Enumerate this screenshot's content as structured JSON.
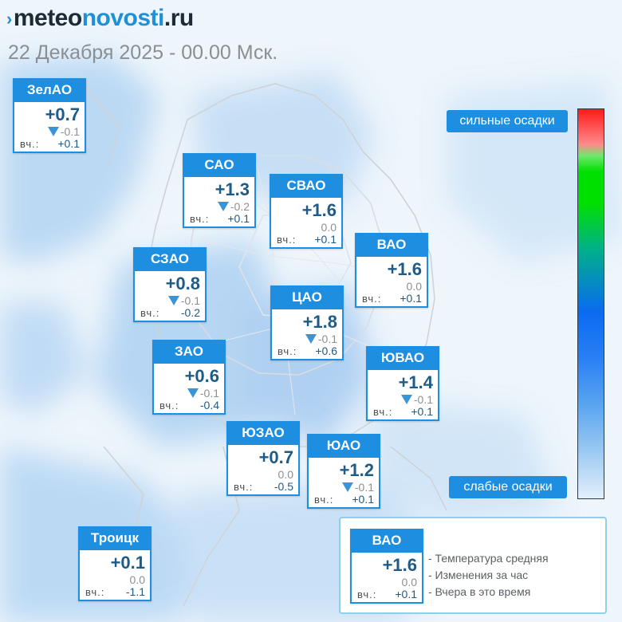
{
  "brand": {
    "part1": "meteo",
    "part2": "novosti",
    "part3": ".ru"
  },
  "date": "22 Декабря 2025 - 00.00 Мск.",
  "yesterday_label": "вч.:",
  "districts": [
    {
      "name": "ЗелАО",
      "temp": "+0.7",
      "change": "-0.1",
      "down": true,
      "yesterday": "+0.1"
    },
    {
      "name": "САО",
      "temp": "+1.3",
      "change": "-0.2",
      "down": true,
      "yesterday": "+0.1"
    },
    {
      "name": "СВАО",
      "temp": "+1.6",
      "change": "0.0",
      "down": false,
      "yesterday": "+0.1"
    },
    {
      "name": "ВАО",
      "temp": "+1.6",
      "change": "0.0",
      "down": false,
      "yesterday": "+0.1"
    },
    {
      "name": "СЗАО",
      "temp": "+0.8",
      "change": "-0.1",
      "down": true,
      "yesterday": "-0.2"
    },
    {
      "name": "ЦАО",
      "temp": "+1.8",
      "change": "-0.1",
      "down": true,
      "yesterday": "+0.6"
    },
    {
      "name": "ЗАО",
      "temp": "+0.6",
      "change": "-0.1",
      "down": true,
      "yesterday": "-0.4"
    },
    {
      "name": "ЮВАО",
      "temp": "+1.4",
      "change": "-0.1",
      "down": true,
      "yesterday": "+0.1"
    },
    {
      "name": "ЮЗАО",
      "temp": "+0.7",
      "change": "0.0",
      "down": false,
      "yesterday": "-0.5"
    },
    {
      "name": "ЮАО",
      "temp": "+1.2",
      "change": "-0.1",
      "down": true,
      "yesterday": "+0.1"
    },
    {
      "name": "Троицк",
      "temp": "+0.1",
      "change": "0.0",
      "down": false,
      "yesterday": "-1.1"
    }
  ],
  "scale": {
    "top_label": "сильные осадки",
    "bottom_label": "слабые осадки"
  },
  "legend": {
    "example": {
      "name": "ВАО",
      "temp": "+1.6",
      "change": "0.0",
      "down": false,
      "yesterday": "+0.1"
    },
    "lines": [
      "- Температура средняя",
      "- Изменения за час",
      "- Вчера в это время"
    ]
  },
  "colors": {
    "accent": "#1d8ee0",
    "temp_text": "#1e5b86",
    "arrow": "#3a95d8"
  }
}
